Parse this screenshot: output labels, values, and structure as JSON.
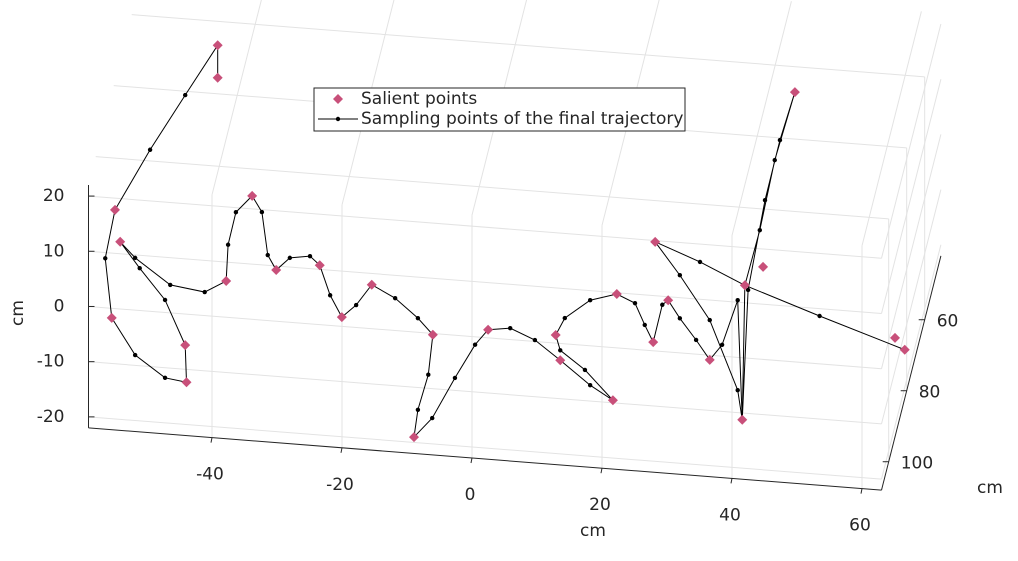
{
  "chart_data": {
    "type": "line3d",
    "xlabel": "cm",
    "ylabel": "cm",
    "zlabel": "cm",
    "xlim": [
      -59,
      63
    ],
    "ylim": [
      42,
      108
    ],
    "zlim": [
      -22,
      22
    ],
    "xticks": [
      -40,
      -20,
      0,
      20,
      40,
      60
    ],
    "yticks": [
      60,
      80,
      100
    ],
    "zticks": [
      -20,
      -10,
      0,
      10,
      20
    ],
    "grid": true,
    "legend_position": "north",
    "series": [
      {
        "name": "Salient points",
        "color": "#c8507a",
        "marker": "diamond",
        "line": false,
        "x": [
          -43,
          -43,
          -58.8,
          -59.3,
          -58,
          -48,
          -47.8,
          -41.7,
          -37.7,
          -34,
          -27.3,
          -23.9,
          -19.3,
          -9.9,
          -12.8,
          -1.4,
          9,
          9.7,
          17.8,
          18.4,
          24,
          26.3,
          32.7,
          24.3,
          38.1,
          40.9,
          45.8,
          37.7,
          61.2,
          62.7
        ],
        "y": [
          80,
          80,
          80,
          80,
          80,
          80,
          80,
          80,
          80,
          80,
          80,
          80,
          80,
          80,
          80,
          80,
          80,
          80,
          80,
          80,
          80,
          80,
          80,
          80,
          80,
          80,
          80,
          80,
          80,
          80
        ],
        "z": [
          24.9,
          30.8,
          -0.5,
          -20.1,
          -6.2,
          -24,
          -30.7,
          -11.8,
          4,
          -9.1,
          -7.6,
          -16.7,
          -10.4,
          -18.6,
          -37.4,
          -16.9,
          -16.9,
          -21.4,
          -27.9,
          -8.6,
          -16.8,
          -9,
          -19.2,
          1.4,
          -5.2,
          -1.6,
          30.5,
          -29.6,
          -12.6,
          -14.6
        ]
      },
      {
        "name": "Sampling points of the final trajectory",
        "color": "#000000",
        "marker": "dot",
        "line": true,
        "x": [
          -43,
          -43,
          -48,
          -53.4,
          -58.8,
          -60.3,
          -59.3,
          -55.7,
          -51.1,
          -47.8,
          -48,
          -51.1,
          -55,
          -58,
          -55.7,
          -50.3,
          -45,
          -41.7,
          -41.4,
          -40.2,
          -37.7,
          -36.2,
          -35.3,
          -34,
          -31.9,
          -28.8,
          -27.3,
          -25.7,
          -23.9,
          -21.7,
          -19.3,
          -15.7,
          -12.2,
          -9.9,
          -10.6,
          -12.2,
          -12.8,
          -10,
          -6.5,
          -3.4,
          -1.4,
          2,
          5.8,
          9.7,
          14.3,
          17.8,
          13.5,
          9.7,
          9,
          10.4,
          14.3,
          18.4,
          21.2,
          22.7,
          24,
          25.4,
          26.3,
          28.1,
          30.6,
          32.7,
          34.6,
          37,
          37.7,
          38.6,
          41.2,
          43.5,
          45.8,
          42.7,
          40.4,
          38.1,
          37.7,
          37,
          32.7,
          28.1,
          24.3,
          31.2,
          38.1,
          49.6,
          62.7
        ],
        "y": [
          80,
          80,
          80,
          80,
          80,
          80,
          80,
          80,
          80,
          80,
          80,
          80,
          80,
          80,
          80,
          80,
          80,
          80,
          80,
          80,
          80,
          80,
          80,
          80,
          80,
          80,
          80,
          80,
          80,
          80,
          80,
          80,
          80,
          80,
          80,
          80,
          80,
          80,
          80,
          80,
          80,
          80,
          80,
          80,
          80,
          80,
          80,
          80,
          80,
          80,
          80,
          80,
          80,
          80,
          80,
          80,
          80,
          80,
          80,
          80,
          80,
          80,
          80,
          80,
          80,
          80,
          80,
          80,
          80,
          80,
          80,
          80,
          80,
          80,
          80,
          80,
          80,
          80,
          80
        ],
        "z": [
          24.9,
          30.8,
          21.3,
          10.9,
          -0.5,
          -9.4,
          -20.1,
          -26.5,
          -30.2,
          -30.7,
          -24,
          -16.1,
          -10.7,
          -6.2,
          -8.9,
          -13.3,
          -14.1,
          -11.8,
          -5.2,
          0.8,
          4,
          1.2,
          -6.5,
          -9.1,
          -6.7,
          -6.1,
          -7.6,
          -12.9,
          -16.7,
          -14.3,
          -10.4,
          -12.5,
          -15.8,
          -18.6,
          -25.9,
          -32.4,
          -37.4,
          -33.7,
          -26.1,
          -19.8,
          -16.9,
          -16.3,
          -18.1,
          -21.4,
          -25.5,
          -27.9,
          -22.8,
          -19.6,
          -16.9,
          -13.7,
          -10.1,
          -8.6,
          -10,
          -13.8,
          -16.8,
          -9.9,
          -9,
          -12.1,
          -15.8,
          -19.2,
          -16.3,
          -8,
          -29.6,
          -6,
          10.5,
          21.6,
          30.5,
          17.9,
          5,
          -5.2,
          -29.6,
          -24.3,
          -12,
          -4.3,
          1.4,
          -1.6,
          -5.2,
          -9.7,
          -14.6
        ]
      }
    ]
  }
}
